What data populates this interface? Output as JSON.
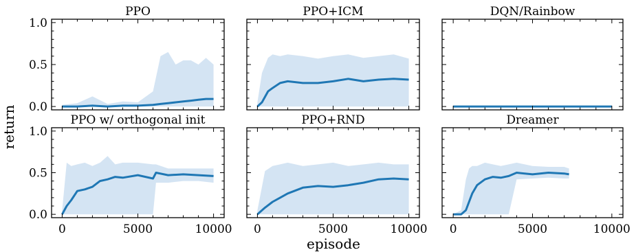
{
  "figure": {
    "ylabel": "return",
    "xlabel": "episode"
  },
  "colors": {
    "line": "#1f77b4",
    "band": "#c6dbef"
  },
  "chart_data": [
    {
      "type": "line",
      "title": "PPO",
      "xlim": [
        -700,
        10700
      ],
      "ylim": [
        -0.04,
        1.04
      ],
      "xticks": [
        "0",
        "5000",
        "10000"
      ],
      "yticks": [
        "0.0",
        "0.5",
        "1.0"
      ],
      "series": [
        {
          "x": [
            0,
            1000,
            2000,
            3000,
            4000,
            5000,
            6000,
            6500,
            7000,
            7500,
            8000,
            8500,
            9000,
            9500,
            10000
          ],
          "mean": [
            0.0,
            0.0,
            0.01,
            0.0,
            0.01,
            0.01,
            0.02,
            0.03,
            0.04,
            0.05,
            0.06,
            0.07,
            0.08,
            0.09,
            0.09
          ],
          "upper": [
            0.02,
            0.04,
            0.12,
            0.03,
            0.06,
            0.05,
            0.18,
            0.6,
            0.65,
            0.5,
            0.55,
            0.55,
            0.5,
            0.58,
            0.5
          ],
          "lower": [
            0.0,
            0.0,
            0.0,
            0.0,
            0.0,
            0.0,
            0.0,
            0.0,
            0.0,
            0.0,
            0.0,
            0.0,
            0.0,
            0.0,
            0.0
          ]
        }
      ]
    },
    {
      "type": "line",
      "title": "PPO+ICM",
      "xlim": [
        -700,
        10700
      ],
      "ylim": [
        -0.04,
        1.04
      ],
      "xticks": [
        "0",
        "5000",
        "10000"
      ],
      "yticks": [],
      "series": [
        {
          "x": [
            0,
            300,
            700,
            1000,
            1500,
            2000,
            3000,
            4000,
            5000,
            6000,
            7000,
            8000,
            9000,
            10000
          ],
          "mean": [
            0.0,
            0.05,
            0.18,
            0.22,
            0.28,
            0.3,
            0.28,
            0.28,
            0.3,
            0.33,
            0.3,
            0.32,
            0.33,
            0.32
          ],
          "upper": [
            0.05,
            0.4,
            0.58,
            0.62,
            0.6,
            0.62,
            0.6,
            0.57,
            0.6,
            0.62,
            0.58,
            0.6,
            0.62,
            0.57
          ],
          "lower": [
            0.0,
            0.0,
            0.0,
            0.0,
            0.0,
            0.0,
            0.0,
            0.0,
            0.0,
            0.0,
            0.0,
            0.0,
            0.0,
            0.0
          ]
        }
      ]
    },
    {
      "type": "line",
      "title": "DQN/Rainbow",
      "xlim": [
        -700,
        10700
      ],
      "ylim": [
        -0.04,
        1.04
      ],
      "xticks": [
        "0",
        "5000",
        "10000"
      ],
      "yticks": [],
      "series": [
        {
          "x": [
            0,
            10000
          ],
          "mean": [
            0.0,
            0.0
          ],
          "upper": [
            0.0,
            0.0
          ],
          "lower": [
            0.0,
            0.0
          ]
        }
      ]
    },
    {
      "type": "line",
      "title": "PPO w/ orthogonal init",
      "xlim": [
        -700,
        10700
      ],
      "ylim": [
        -0.04,
        1.04
      ],
      "xticks": [
        "0",
        "5000",
        "10000"
      ],
      "yticks": [
        "0.0",
        "0.5",
        "1.0"
      ],
      "series": [
        {
          "x": [
            0,
            300,
            600,
            1000,
            1500,
            2000,
            2500,
            3000,
            3500,
            4000,
            5000,
            6000,
            6200,
            7000,
            8000,
            9000,
            10000
          ],
          "mean": [
            0.0,
            0.1,
            0.17,
            0.28,
            0.3,
            0.33,
            0.4,
            0.42,
            0.45,
            0.44,
            0.47,
            0.43,
            0.5,
            0.47,
            0.48,
            0.47,
            0.46
          ],
          "upper": [
            0.05,
            0.62,
            0.58,
            0.6,
            0.62,
            0.58,
            0.62,
            0.7,
            0.6,
            0.62,
            0.62,
            0.6,
            0.6,
            0.55,
            0.55,
            0.55,
            0.55
          ],
          "lower": [
            0.0,
            0.0,
            0.0,
            0.0,
            0.0,
            0.0,
            0.0,
            0.0,
            0.0,
            0.0,
            0.0,
            0.0,
            0.38,
            0.38,
            0.4,
            0.4,
            0.38
          ]
        }
      ]
    },
    {
      "type": "line",
      "title": "PPO+RND",
      "xlim": [
        -700,
        10700
      ],
      "ylim": [
        -0.04,
        1.04
      ],
      "xticks": [
        "0",
        "5000",
        "10000"
      ],
      "yticks": [],
      "series": [
        {
          "x": [
            0,
            500,
            1000,
            1500,
            2000,
            3000,
            4000,
            5000,
            6000,
            7000,
            8000,
            9000,
            10000
          ],
          "mean": [
            0.0,
            0.08,
            0.15,
            0.2,
            0.25,
            0.32,
            0.34,
            0.33,
            0.35,
            0.38,
            0.42,
            0.43,
            0.42
          ],
          "upper": [
            0.05,
            0.52,
            0.58,
            0.6,
            0.62,
            0.58,
            0.6,
            0.62,
            0.58,
            0.6,
            0.62,
            0.6,
            0.6
          ],
          "lower": [
            0.0,
            0.0,
            0.0,
            0.0,
            0.0,
            0.0,
            0.0,
            0.0,
            0.0,
            0.0,
            0.0,
            0.0,
            0.0
          ]
        }
      ]
    },
    {
      "type": "line",
      "title": "Dreamer",
      "xlim": [
        -700,
        10700
      ],
      "ylim": [
        -0.04,
        1.04
      ],
      "xticks": [
        "0",
        "5000",
        "10000"
      ],
      "yticks": [],
      "series": [
        {
          "x": [
            0,
            500,
            800,
            1000,
            1200,
            1500,
            2000,
            2500,
            3000,
            3500,
            4000,
            5000,
            6000,
            7000,
            7300
          ],
          "mean": [
            0.0,
            0.0,
            0.05,
            0.15,
            0.25,
            0.35,
            0.42,
            0.45,
            0.44,
            0.46,
            0.5,
            0.48,
            0.5,
            0.49,
            0.48
          ],
          "upper": [
            0.0,
            0.05,
            0.42,
            0.55,
            0.58,
            0.58,
            0.62,
            0.6,
            0.58,
            0.6,
            0.62,
            0.58,
            0.57,
            0.57,
            0.55
          ],
          "lower": [
            0.0,
            0.0,
            0.0,
            0.0,
            0.0,
            0.0,
            0.0,
            0.0,
            0.0,
            0.0,
            0.42,
            0.43,
            0.44,
            0.43,
            0.43
          ]
        }
      ]
    }
  ]
}
